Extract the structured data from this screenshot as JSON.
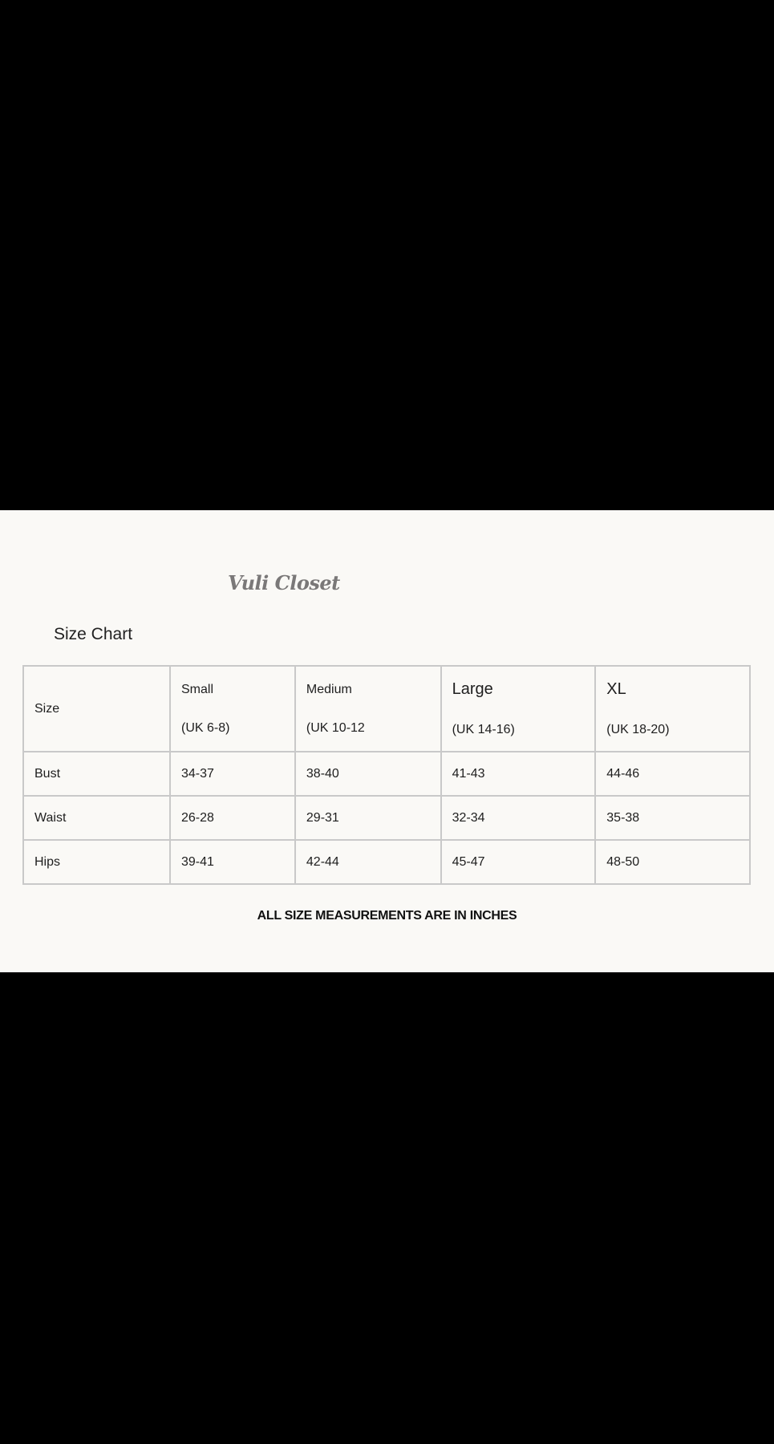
{
  "brand": "Vuli Closet",
  "title": "Size Chart",
  "table": {
    "corner": "Size",
    "sizes": [
      {
        "name": "Small",
        "uk": "(UK 6-8)"
      },
      {
        "name": "Medium",
        "uk": "(UK 10-12"
      },
      {
        "name": "Large",
        "uk": "(UK 14-16)"
      },
      {
        "name": "XL",
        "uk": "(UK 18-20)"
      }
    ],
    "rows": [
      {
        "label": "Bust",
        "values": [
          "34-37",
          "38-40",
          "41-43",
          "44-46"
        ]
      },
      {
        "label": "Waist",
        "values": [
          "26-28",
          "29-31",
          "32-34",
          "35-38"
        ]
      },
      {
        "label": "Hips",
        "values": [
          "39-41",
          "42-44",
          "45-47",
          "48-50"
        ]
      }
    ]
  },
  "footer": "ALL SIZE MEASUREMENTS ARE IN INCHES"
}
